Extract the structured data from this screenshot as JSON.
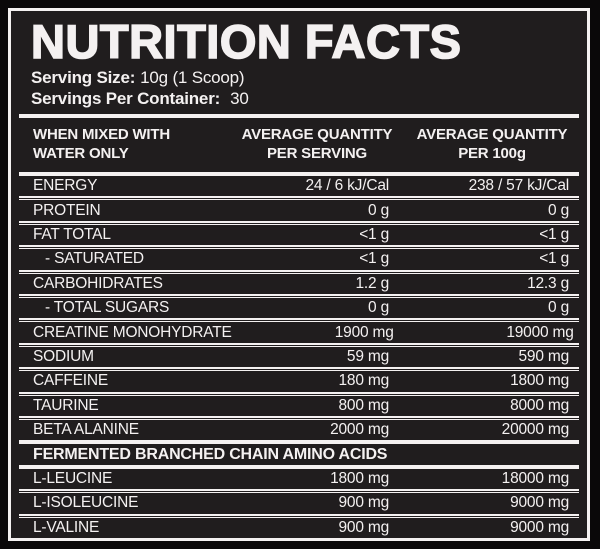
{
  "label": {
    "title": "NUTRITION FACTS",
    "serving_size_label": "Serving Size:",
    "serving_size_value": "10g (1 Scoop)",
    "servings_per_container_label": "Servings Per Container:",
    "servings_per_container_value": "30",
    "colors": {
      "panel_background": "#201d1e",
      "outer_background": "#0a0809",
      "text_and_rules": "#f4f1f1"
    }
  },
  "table": {
    "header": {
      "col1_line1": "WHEN MIXED WITH",
      "col1_line2": "WATER ONLY",
      "col2_line1": "AVERAGE QUANTITY",
      "col2_line2": "PER SERVING",
      "col3_line1": "AVERAGE QUANTITY",
      "col3_line2": "PER 100g"
    },
    "rows": [
      {
        "name": "ENERGY",
        "per_serving": "24 / 6 kJ/Cal",
        "per_100g": "238 / 57 kJ/Cal"
      },
      {
        "name": "PROTEIN",
        "per_serving": "0 g",
        "per_100g": "0 g"
      },
      {
        "name": "FAT TOTAL",
        "per_serving": "<1 g",
        "per_100g": "<1 g"
      },
      {
        "name": "- SATURATED",
        "per_serving": "<1 g",
        "per_100g": "<1 g"
      },
      {
        "name": "CARBOHIDRATES",
        "per_serving": "1.2 g",
        "per_100g": "12.3 g"
      },
      {
        "name": "- TOTAL SUGARS",
        "per_serving": "0 g",
        "per_100g": "0 g"
      },
      {
        "name": "CREATINE MONOHYDRATE",
        "per_serving": "1900 mg",
        "per_100g": "19000 mg"
      },
      {
        "name": "SODIUM",
        "per_serving": "59 mg",
        "per_100g": "590 mg"
      },
      {
        "name": "CAFFEINE",
        "per_serving": "180 mg",
        "per_100g": "1800 mg"
      },
      {
        "name": "TAURINE",
        "per_serving": "800 mg",
        "per_100g": "8000 mg"
      },
      {
        "name": "BETA ALANINE",
        "per_serving": "2000 mg",
        "per_100g": "20000 mg"
      }
    ],
    "section_header": "FERMENTED BRANCHED CHAIN AMINO ACIDS",
    "section_rows": [
      {
        "name": "L-LEUCINE",
        "per_serving": "1800 mg",
        "per_100g": "18000 mg"
      },
      {
        "name": "L-ISOLEUCINE",
        "per_serving": "900 mg",
        "per_100g": "9000 mg"
      },
      {
        "name": "L-VALINE",
        "per_serving": "900 mg",
        "per_100g": "9000 mg"
      }
    ]
  }
}
